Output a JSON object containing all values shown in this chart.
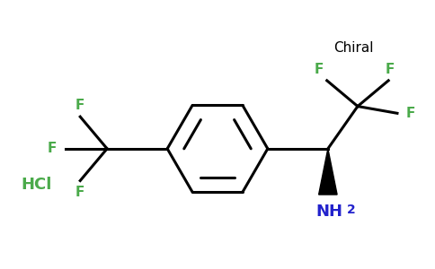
{
  "background": "#ffffff",
  "bond_color": "#000000",
  "F_color": "#4aaa4a",
  "N_color": "#2222cc",
  "HCl_color": "#4aaa4a",
  "chiral_text_color": "#000000",
  "figsize": [
    4.84,
    3.0
  ],
  "dpi": 100,
  "xlim": [
    -2.6,
    2.6
  ],
  "ylim": [
    -1.5,
    1.6
  ]
}
